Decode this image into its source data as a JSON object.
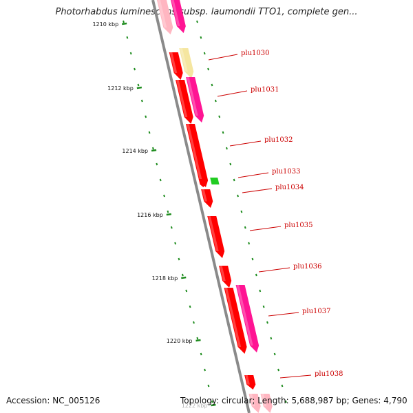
{
  "title": "Photorhabdus luminescens subsp. laumondii TTO1, complete gen...",
  "accession": "Accession: NC_005126",
  "summary": "Topology: circular; Length: 5,688,987 bp; Genes: 4,790",
  "colors": {
    "backbone": "#8a8a8a",
    "gene_forward": "#ff0000",
    "gene_reverse": "#ff1493",
    "gene_green": "#22cc22",
    "gene_yellow": "#f5e6a0",
    "gene_pink": "#ffb6c1",
    "ruler": "#1e8c1e",
    "label": "#cc0000"
  },
  "ruler": {
    "ticks": [
      {
        "kbp": 1210,
        "label": "1210 kbp"
      },
      {
        "kbp": 1212,
        "label": "1212 kbp"
      },
      {
        "kbp": 1214,
        "label": "1214 kbp"
      },
      {
        "kbp": 1216,
        "label": "1216 kbp"
      },
      {
        "kbp": 1218,
        "label": "1218 kbp"
      },
      {
        "kbp": 1220,
        "label": "1220 kbp"
      },
      {
        "kbp": 1222,
        "label": "1222 kbp"
      }
    ]
  },
  "genes": [
    {
      "name": "plu1030"
    },
    {
      "name": "plu1031"
    },
    {
      "name": "plu1032"
    },
    {
      "name": "plu1033"
    },
    {
      "name": "plu1034"
    },
    {
      "name": "plu1035"
    },
    {
      "name": "plu1036"
    },
    {
      "name": "plu1037"
    },
    {
      "name": "plu1038"
    }
  ]
}
